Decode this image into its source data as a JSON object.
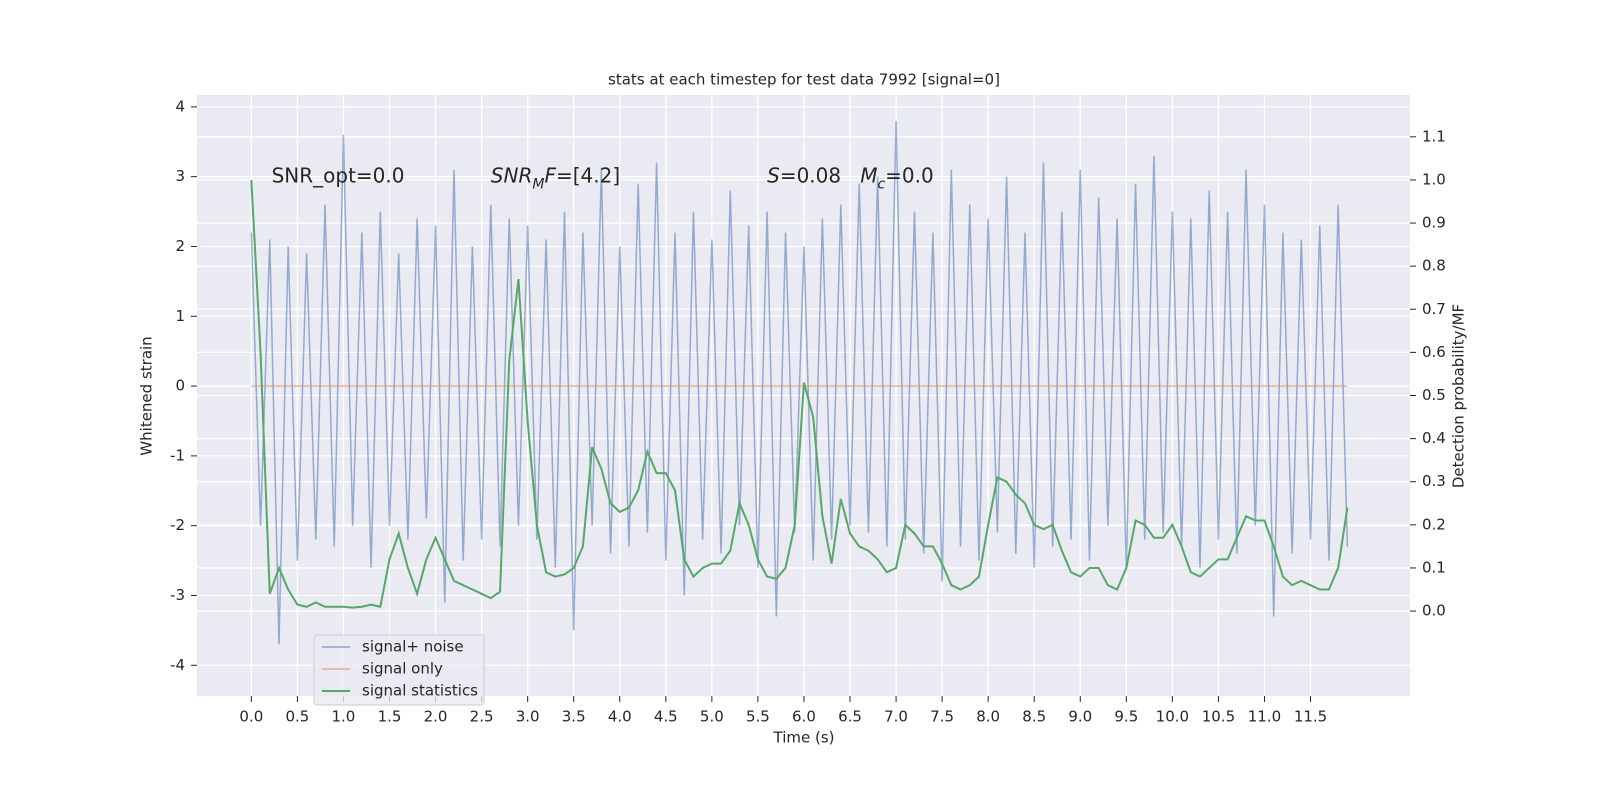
{
  "chart_data": {
    "type": "line",
    "title": "stats at each timestep for test data 7992 [signal=0]",
    "xlabel": "Time (s)",
    "ylabel": "Whitened strain",
    "y2label": "Detection probability/MF",
    "grid": true,
    "legend": "lower left",
    "xlim": [
      -0.59,
      12.58
    ],
    "ylim": [
      -4.44,
      4.17
    ],
    "y2lim": [
      -0.197,
      1.197
    ],
    "xticks": [
      {
        "value": 0,
        "label": "0.0"
      },
      {
        "value": 0.5,
        "label": "0.5"
      },
      {
        "value": 1,
        "label": "1.0"
      },
      {
        "value": 1.5,
        "label": "1.5"
      },
      {
        "value": 2,
        "label": "2.0"
      },
      {
        "value": 2.5,
        "label": "2.5"
      },
      {
        "value": 3,
        "label": "3.0"
      },
      {
        "value": 3.5,
        "label": "3.5"
      },
      {
        "value": 4,
        "label": "4.0"
      },
      {
        "value": 4.5,
        "label": "4.5"
      },
      {
        "value": 5,
        "label": "5.0"
      },
      {
        "value": 5.5,
        "label": "5.5"
      },
      {
        "value": 6,
        "label": "6.0"
      },
      {
        "value": 6.5,
        "label": "6.5"
      },
      {
        "value": 7,
        "label": "7.0"
      },
      {
        "value": 7.5,
        "label": "7.5"
      },
      {
        "value": 8,
        "label": "8.0"
      },
      {
        "value": 8.5,
        "label": "8.5"
      },
      {
        "value": 9,
        "label": "9.0"
      },
      {
        "value": 9.5,
        "label": "9.5"
      },
      {
        "value": 10,
        "label": "10.0"
      },
      {
        "value": 10.5,
        "label": "10.5"
      },
      {
        "value": 11,
        "label": "11.0"
      },
      {
        "value": 11.5,
        "label": "11.5"
      }
    ],
    "yticks": [
      -4,
      -3,
      -2,
      -1,
      0,
      1,
      2,
      3,
      4
    ],
    "y2ticks": [
      {
        "value": 0,
        "label": "0.0"
      },
      {
        "value": 0.1,
        "label": "0.1"
      },
      {
        "value": 0.2,
        "label": "0.2"
      },
      {
        "value": 0.3,
        "label": "0.3"
      },
      {
        "value": 0.4,
        "label": "0.4"
      },
      {
        "value": 0.5,
        "label": "0.5"
      },
      {
        "value": 0.6,
        "label": "0.6"
      },
      {
        "value": 0.7,
        "label": "0.7"
      },
      {
        "value": 0.8,
        "label": "0.8"
      },
      {
        "value": 0.9,
        "label": "0.9"
      },
      {
        "value": 1,
        "label": "1.0"
      },
      {
        "value": 1.1,
        "label": "1.1"
      }
    ],
    "x": [
      0,
      0.1,
      0.2,
      0.3,
      0.4,
      0.5,
      0.6,
      0.7,
      0.8,
      0.9,
      1,
      1.1,
      1.2,
      1.3,
      1.4,
      1.5,
      1.6,
      1.7,
      1.8,
      1.9,
      2,
      2.1,
      2.2,
      2.3,
      2.4,
      2.5,
      2.6,
      2.7,
      2.8,
      2.9,
      3,
      3.1,
      3.2,
      3.3,
      3.4,
      3.5,
      3.6,
      3.7,
      3.8,
      3.9,
      4,
      4.1,
      4.2,
      4.3,
      4.4,
      4.5,
      4.6,
      4.7,
      4.8,
      4.9,
      5,
      5.1,
      5.2,
      5.3,
      5.4,
      5.5,
      5.6,
      5.7,
      5.8,
      5.9,
      6,
      6.1,
      6.2,
      6.3,
      6.4,
      6.5,
      6.6,
      6.7,
      6.8,
      6.9,
      7,
      7.1,
      7.2,
      7.3,
      7.4,
      7.5,
      7.6,
      7.7,
      7.8,
      7.9,
      8,
      8.1,
      8.2,
      8.3,
      8.4,
      8.5,
      8.6,
      8.7,
      8.8,
      8.9,
      9,
      9.1,
      9.2,
      9.3,
      9.4,
      9.5,
      9.6,
      9.7,
      9.8,
      9.9,
      10,
      10.1,
      10.2,
      10.3,
      10.4,
      10.5,
      10.6,
      10.7,
      10.8,
      10.9,
      11,
      11.1,
      11.2,
      11.3,
      11.4,
      11.5,
      11.6,
      11.7,
      11.8,
      11.9
    ],
    "series": [
      {
        "name": "signal+ noise",
        "color": "#4c72b0",
        "values": [
          2.2,
          -2.0,
          2.1,
          -3.7,
          2.0,
          -2.5,
          1.9,
          -2.2,
          2.6,
          -2.3,
          3.6,
          -2.0,
          2.2,
          -2.6,
          2.5,
          -2.0,
          1.9,
          -2.2,
          2.4,
          -1.9,
          2.3,
          -3.1,
          3.1,
          -2.5,
          2.0,
          -2.2,
          2.6,
          -2.3,
          2.4,
          -2.0,
          2.3,
          -2.2,
          2.1,
          -2.6,
          2.5,
          -3.5,
          2.2,
          -2.0,
          3.1,
          -2.4,
          2.0,
          -2.3,
          2.9,
          -2.1,
          3.2,
          -2.5,
          2.2,
          -3.0,
          2.5,
          -2.2,
          2.1,
          -2.4,
          2.8,
          -2.0,
          2.3,
          -2.6,
          2.5,
          -3.3,
          2.2,
          -2.1,
          2.0,
          -2.5,
          2.4,
          -2.2,
          2.6,
          -2.0,
          2.9,
          -2.1,
          3.0,
          -2.3,
          3.8,
          -2.2,
          2.5,
          -2.4,
          2.2,
          -2.8,
          3.1,
          -2.3,
          2.6,
          -2.5,
          2.4,
          -2.1,
          3.0,
          -2.4,
          2.2,
          -2.6,
          3.2,
          -2.3,
          2.5,
          -2.2,
          3.1,
          -2.5,
          2.7,
          -2.0,
          2.4,
          -2.6,
          2.9,
          -2.2,
          3.3,
          -2.1,
          2.5,
          -2.3,
          2.4,
          -2.6,
          2.8,
          -2.2,
          2.5,
          -2.4,
          3.1,
          -2.0,
          2.6,
          -3.3,
          2.2,
          -2.4,
          2.1,
          -2.2,
          2.3,
          -2.5,
          2.6,
          -2.3
        ]
      },
      {
        "name": "signal only",
        "color": "#dd8452",
        "x": [
          0,
          11.9
        ],
        "values": [
          0,
          0
        ]
      },
      {
        "name": "signal statistics",
        "color": "#55a868",
        "axis": "y2",
        "values": [
          1.0,
          0.6,
          0.04,
          0.1,
          0.05,
          0.015,
          0.01,
          0.02,
          0.01,
          0.01,
          0.01,
          0.008,
          0.01,
          0.015,
          0.01,
          0.12,
          0.18,
          0.1,
          0.04,
          0.12,
          0.17,
          0.12,
          0.07,
          0.06,
          0.05,
          0.04,
          0.03,
          0.045,
          0.58,
          0.77,
          0.44,
          0.2,
          0.09,
          0.08,
          0.085,
          0.1,
          0.15,
          0.38,
          0.33,
          0.25,
          0.23,
          0.24,
          0.28,
          0.37,
          0.32,
          0.32,
          0.28,
          0.12,
          0.08,
          0.1,
          0.11,
          0.11,
          0.14,
          0.25,
          0.2,
          0.12,
          0.08,
          0.075,
          0.1,
          0.2,
          0.53,
          0.45,
          0.22,
          0.11,
          0.26,
          0.18,
          0.15,
          0.14,
          0.12,
          0.09,
          0.1,
          0.2,
          0.18,
          0.15,
          0.15,
          0.11,
          0.06,
          0.05,
          0.06,
          0.08,
          0.2,
          0.31,
          0.3,
          0.27,
          0.25,
          0.2,
          0.19,
          0.2,
          0.14,
          0.09,
          0.08,
          0.1,
          0.1,
          0.06,
          0.05,
          0.1,
          0.21,
          0.2,
          0.17,
          0.17,
          0.2,
          0.15,
          0.09,
          0.08,
          0.1,
          0.12,
          0.12,
          0.17,
          0.22,
          0.21,
          0.21,
          0.15,
          0.08,
          0.06,
          0.07,
          0.06,
          0.05,
          0.05,
          0.1,
          0.24
        ]
      }
    ],
    "annotations": [
      {
        "x": 0.22,
        "y": 3.0,
        "parts": [
          {
            "text": "SNR_opt=0.0",
            "italic": false
          }
        ]
      },
      {
        "x": 2.6,
        "y": 3.0,
        "parts": [
          {
            "text": "SNR",
            "italic": true
          },
          {
            "text": "M",
            "italic": true,
            "sub": true
          },
          {
            "text": "F",
            "italic": true
          },
          {
            "text": "=[4.2]",
            "italic": false
          }
        ]
      },
      {
        "x": 5.6,
        "y": 3.0,
        "parts": [
          {
            "text": "S",
            "italic": true
          },
          {
            "text": "=0.08   ",
            "italic": false
          },
          {
            "text": "M",
            "italic": true
          },
          {
            "text": "c",
            "italic": true,
            "sub": true
          },
          {
            "text": "=0.0",
            "italic": false
          }
        ]
      }
    ]
  }
}
